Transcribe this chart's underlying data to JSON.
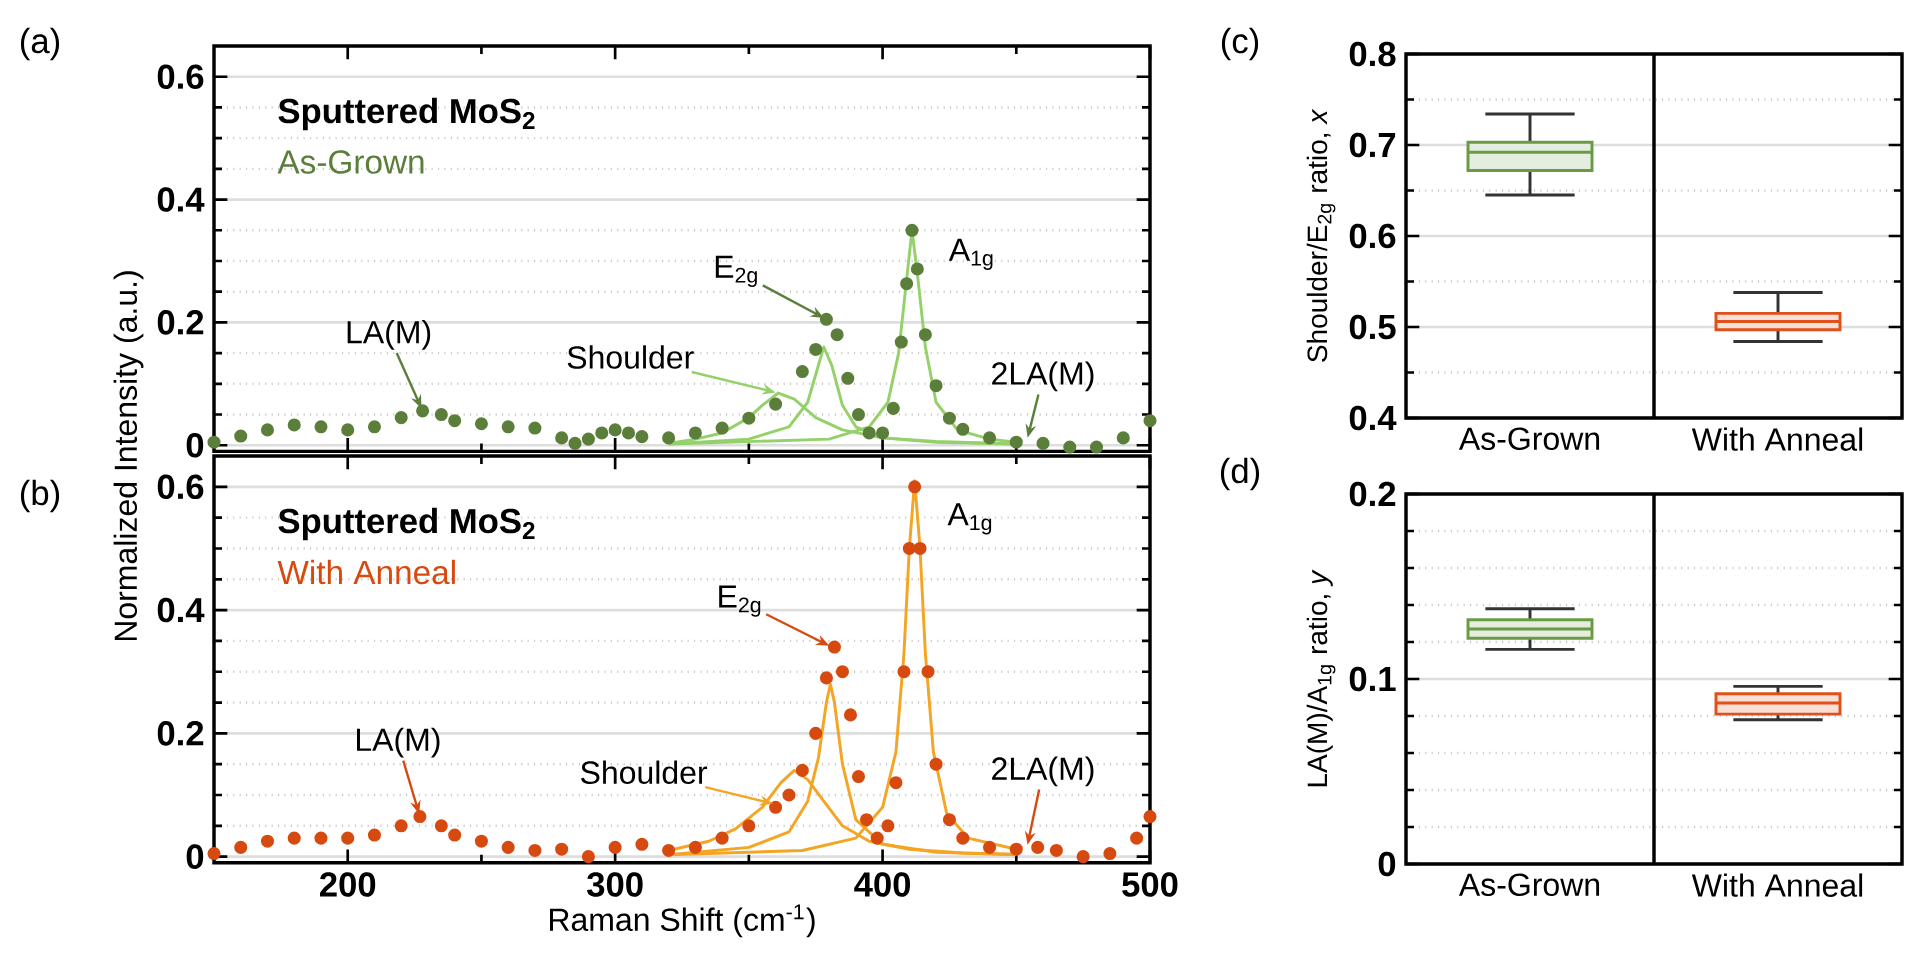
{
  "chart_data": [
    {
      "type": "scatter",
      "title": "Sputtered MoS$_{2}$",
      "xlim": [
        150,
        500
      ],
      "ylim": [
        -0.01,
        0.65
      ],
      "grid": "y",
      "tick_labels": "y",
      "xticks": [
        200,
        {
          "value": 250,
          "label": null
        },
        300,
        {
          "value": 350,
          "label": null
        },
        400,
        {
          "value": 450,
          "label": null
        },
        500
      ],
      "yticks": [
        0,
        {
          "value": 0.05,
          "label": null
        },
        {
          "value": 0.1,
          "label": null
        },
        {
          "value": 0.15,
          "label": null
        },
        0.2,
        {
          "value": 0.25,
          "label": null
        },
        {
          "value": 0.3,
          "label": null
        },
        {
          "value": 0.35,
          "label": null
        },
        0.4,
        {
          "value": 0.45,
          "label": null
        },
        {
          "value": 0.5,
          "label": null
        },
        {
          "value": 0.55,
          "label": null
        },
        0.6
      ],
      "annotations": [
        "(a)",
        {
          "text": "LA(M)",
          "x": 228,
          "y": 0.056
        },
        {
          "text": "Shoulder",
          "x": 361,
          "y": 0.085
        },
        {
          "text": "E$_{2g}$",
          "x": 379,
          "y": 0.205
        },
        {
          "text": "A$_{1g}$",
          "x": 411,
          "y": 0.35
        },
        {
          "text": "2LA(M)",
          "x": 454,
          "y": 0.008
        }
      ],
      "series": [
        {
          "name": "As-Grown",
          "type": "scatter",
          "marker": "circle",
          "color": "#5b7f3a",
          "x": [
            150,
            160,
            170,
            180,
            190,
            200,
            210,
            220,
            228,
            235,
            240,
            250,
            260,
            270,
            280,
            285,
            290,
            295,
            300,
            305,
            310,
            320,
            330,
            340,
            350,
            360,
            370,
            375,
            379,
            383,
            387,
            391,
            395,
            400,
            404,
            407,
            409,
            411,
            413,
            416,
            420,
            425,
            430,
            440,
            450,
            460,
            470,
            480,
            490,
            500
          ],
          "values": [
            0.005,
            0.015,
            0.025,
            0.033,
            0.03,
            0.025,
            0.03,
            0.045,
            0.056,
            0.05,
            0.04,
            0.035,
            0.03,
            0.028,
            0.012,
            0.003,
            0.01,
            0.02,
            0.025,
            0.02,
            0.014,
            0.012,
            0.02,
            0.028,
            0.044,
            0.067,
            0.12,
            0.156,
            0.205,
            0.18,
            0.109,
            0.05,
            0.02,
            0.02,
            0.06,
            0.168,
            0.263,
            0.35,
            0.287,
            0.18,
            0.097,
            0.044,
            0.026,
            0.012,
            0.005,
            0.003,
            -0.003,
            -0.003,
            0.012,
            0.04
          ]
        },
        {
          "type": "line",
          "marker": "none",
          "color": "#95d16a",
          "x": [
            320,
            330,
            340,
            350,
            355,
            361,
            367,
            375,
            385,
            400,
            420,
            450
          ],
          "values": [
            0.003,
            0.01,
            0.02,
            0.045,
            0.065,
            0.085,
            0.075,
            0.045,
            0.025,
            0.012,
            0.006,
            0.002
          ]
        },
        {
          "type": "line",
          "marker": "none",
          "color": "#95d16a",
          "x": [
            320,
            350,
            365,
            372,
            376,
            378,
            381,
            385,
            390,
            400,
            420,
            450
          ],
          "values": [
            0.002,
            0.01,
            0.03,
            0.07,
            0.13,
            0.16,
            0.13,
            0.065,
            0.03,
            0.012,
            0.005,
            0.002
          ]
        },
        {
          "type": "line",
          "marker": "none",
          "color": "#95d16a",
          "x": [
            320,
            380,
            395,
            402,
            406,
            409,
            411,
            413,
            416,
            420,
            428,
            440,
            450
          ],
          "values": [
            0.002,
            0.01,
            0.03,
            0.07,
            0.15,
            0.27,
            0.35,
            0.28,
            0.16,
            0.07,
            0.025,
            0.01,
            0.005
          ]
        }
      ]
    },
    {
      "type": "scatter",
      "title": "Sputtered MoS$_{2}$",
      "xlabel": "Raman Shift (cm$^{-1}$)",
      "ylabel": "Normalized Intensity (a.u.)",
      "xlim": [
        150,
        500
      ],
      "ylim": [
        -0.01,
        0.65
      ],
      "grid": "y",
      "xticks": [
        200,
        {
          "value": 250,
          "label": null
        },
        300,
        {
          "value": 350,
          "label": null
        },
        400,
        {
          "value": 450,
          "label": null
        },
        500
      ],
      "yticks": [
        0,
        {
          "value": 0.05,
          "label": null
        },
        {
          "value": 0.1,
          "label": null
        },
        {
          "value": 0.15,
          "label": null
        },
        0.2,
        {
          "value": 0.25,
          "label": null
        },
        {
          "value": 0.3,
          "label": null
        },
        {
          "value": 0.35,
          "label": null
        },
        0.4,
        {
          "value": 0.45,
          "label": null
        },
        {
          "value": 0.5,
          "label": null
        },
        {
          "value": 0.55,
          "label": null
        },
        0.6
      ],
      "annotations": [
        "(b)",
        {
          "text": "LA(M)",
          "x": 227,
          "y": 0.065
        },
        {
          "text": "Shoulder",
          "x": 360,
          "y": 0.085
        },
        {
          "text": "E$_{2g}$",
          "x": 381,
          "y": 0.34
        },
        {
          "text": "A$_{1g}$",
          "x": 412,
          "y": 0.6
        },
        {
          "text": "2LA(M)",
          "x": 454,
          "y": 0.015
        }
      ],
      "series": [
        {
          "name": "With Anneal",
          "type": "scatter",
          "marker": "circle",
          "color": "#d64a10",
          "x": [
            150,
            160,
            170,
            180,
            190,
            200,
            210,
            220,
            227,
            235,
            240,
            250,
            260,
            270,
            280,
            290,
            300,
            310,
            320,
            330,
            340,
            350,
            360,
            365,
            370,
            375,
            379,
            382,
            385,
            388,
            391,
            394,
            398,
            402,
            405,
            408,
            410,
            412,
            414,
            417,
            420,
            425,
            430,
            440,
            450,
            458,
            465,
            475,
            485,
            495,
            500
          ],
          "values": [
            0.005,
            0.015,
            0.025,
            0.03,
            0.03,
            0.03,
            0.035,
            0.05,
            0.065,
            0.05,
            0.035,
            0.025,
            0.015,
            0.01,
            0.012,
            0.0,
            0.015,
            0.02,
            0.01,
            0.015,
            0.03,
            0.05,
            0.08,
            0.1,
            0.14,
            0.2,
            0.29,
            0.34,
            0.3,
            0.23,
            0.13,
            0.06,
            0.03,
            0.05,
            0.12,
            0.3,
            0.5,
            0.6,
            0.5,
            0.3,
            0.15,
            0.06,
            0.03,
            0.015,
            0.012,
            0.015,
            0.01,
            0.0,
            0.005,
            0.03,
            0.065
          ]
        },
        {
          "type": "line",
          "marker": "none",
          "color": "#f5a524",
          "x": [
            320,
            335,
            345,
            355,
            362,
            367,
            372,
            378,
            385,
            395,
            410,
            430,
            450
          ],
          "values": [
            0.01,
            0.025,
            0.045,
            0.08,
            0.12,
            0.14,
            0.125,
            0.09,
            0.05,
            0.025,
            0.012,
            0.006,
            0.004
          ]
        },
        {
          "type": "line",
          "marker": "none",
          "color": "#f5a524",
          "x": [
            320,
            350,
            365,
            372,
            376,
            379,
            380.5,
            382,
            385,
            390,
            400,
            420,
            450
          ],
          "values": [
            0.003,
            0.015,
            0.04,
            0.09,
            0.16,
            0.25,
            0.28,
            0.25,
            0.15,
            0.06,
            0.02,
            0.007,
            0.003
          ]
        },
        {
          "type": "line",
          "marker": "none",
          "color": "#f5a524",
          "x": [
            320,
            370,
            390,
            400,
            405,
            408,
            410,
            412,
            414,
            416,
            419,
            424,
            432,
            450
          ],
          "values": [
            0.003,
            0.01,
            0.03,
            0.08,
            0.17,
            0.33,
            0.5,
            0.61,
            0.5,
            0.33,
            0.17,
            0.07,
            0.03,
            0.012
          ]
        }
      ]
    },
    {
      "type": "box",
      "ylabel": "Shoulder/E$_{2g}$ ratio, *x*",
      "categories": [
        "As-Grown",
        "With Anneal"
      ],
      "ylim": [
        0.4,
        0.8
      ],
      "grid": "y",
      "yticks": [
        0.4,
        {
          "value": 0.45,
          "label": null
        },
        0.5,
        {
          "value": 0.55,
          "label": null
        },
        0.6,
        {
          "value": 0.65,
          "label": null
        },
        0.7,
        {
          "value": 0.75,
          "label": null
        },
        0.8
      ],
      "colors": [
        "#6a9a45",
        "#e0501a"
      ],
      "boxes": [
        {
          "low": 0.645,
          "q1": 0.672,
          "median": 0.692,
          "q3": 0.703,
          "high": 0.734
        },
        {
          "low": 0.484,
          "q1": 0.497,
          "median": 0.506,
          "q3": 0.515,
          "high": 0.538
        }
      ],
      "annotations": [
        "(c)"
      ]
    },
    {
      "type": "box",
      "ylabel": "LA(M)/A$_{1g}$ ratio, *y*",
      "categories": [
        "As-Grown",
        "With Anneal"
      ],
      "ylim": [
        0,
        0.2
      ],
      "grid": "y",
      "yticks": [
        0,
        {
          "value": 0.02,
          "label": null
        },
        {
          "value": 0.04,
          "label": null
        },
        {
          "value": 0.06,
          "label": null
        },
        {
          "value": 0.08,
          "label": null
        },
        0.1,
        {
          "value": 0.12,
          "label": null
        },
        {
          "value": 0.14,
          "label": null
        },
        {
          "value": 0.16,
          "label": null
        },
        {
          "value": 0.18,
          "label": null
        },
        0.2
      ],
      "colors": [
        "#6a9a45",
        "#e0501a"
      ],
      "boxes": [
        {
          "low": 0.116,
          "q1": 0.122,
          "median": 0.127,
          "q3": 0.132,
          "high": 0.138
        },
        {
          "low": 0.078,
          "q1": 0.081,
          "median": 0.087,
          "q3": 0.092,
          "high": 0.096
        }
      ],
      "annotations": [
        "(d)"
      ]
    }
  ]
}
